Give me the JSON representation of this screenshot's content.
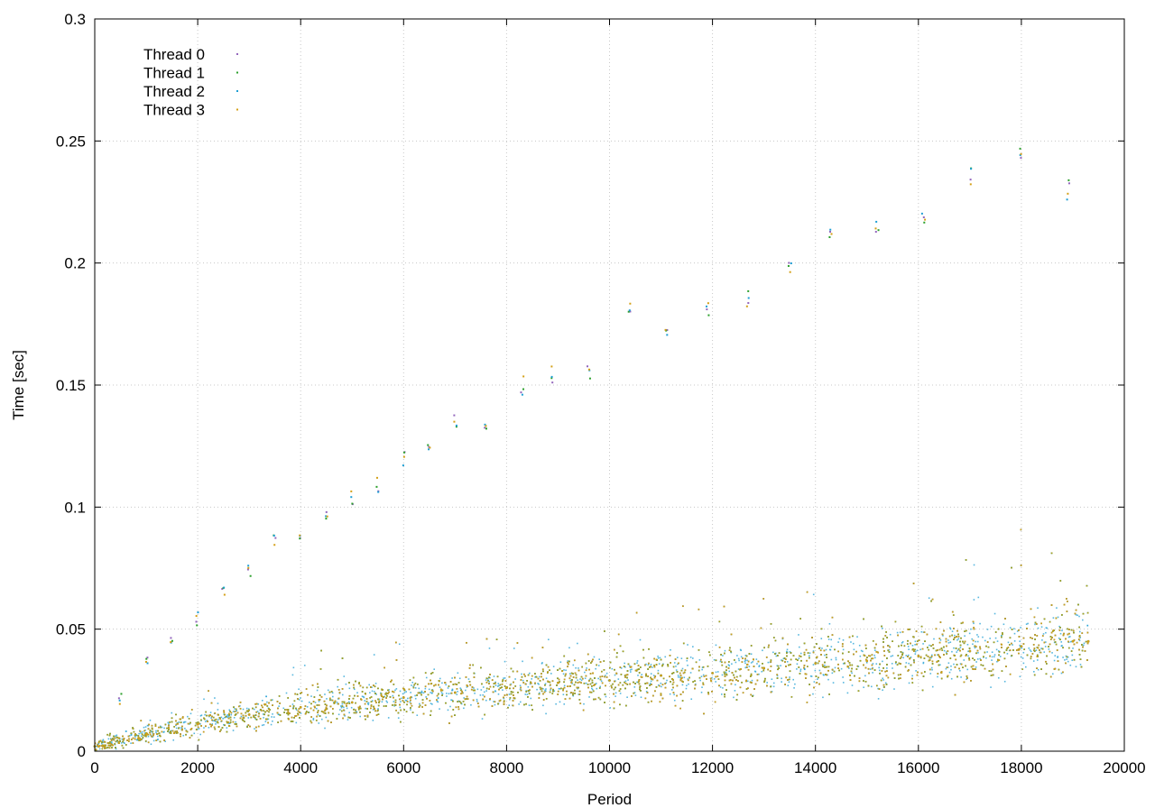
{
  "chart_data": {
    "type": "scatter",
    "title": "",
    "xlabel": "Period",
    "ylabel": "Time [sec]",
    "xlim": [
      0,
      20000
    ],
    "ylim": [
      0,
      0.3
    ],
    "x_ticks": [
      "0",
      "2000",
      "4000",
      "6000",
      "8000",
      "10000",
      "12000",
      "14000",
      "16000",
      "18000",
      "20000"
    ],
    "y_ticks": [
      "0",
      "0.05",
      "0.1",
      "0.15",
      "0.2",
      "0.25",
      "0.3"
    ],
    "grid": true,
    "legend_position": "top-left",
    "series": [
      {
        "name": "Thread 0",
        "color": "#9467bd",
        "x": [
          0,
          1000,
          2000,
          3000,
          4000,
          5000,
          6000,
          7000,
          8000,
          9000,
          10000,
          11000,
          12000,
          13000,
          14000,
          15000,
          16000,
          17000,
          18000,
          19000,
          19300
        ],
        "values": [
          0.002,
          0.007,
          0.011,
          0.015,
          0.018,
          0.02,
          0.022,
          0.024,
          0.026,
          0.028,
          0.029,
          0.031,
          0.032,
          0.034,
          0.036,
          0.037,
          0.039,
          0.041,
          0.043,
          0.045,
          0.045
        ]
      },
      {
        "name": "Thread 1",
        "color": "#2ca02c",
        "x": [
          0,
          1000,
          2000,
          3000,
          4000,
          5000,
          6000,
          7000,
          8000,
          9000,
          10000,
          11000,
          12000,
          13000,
          14000,
          15000,
          16000,
          17000,
          18000,
          19000,
          19300
        ],
        "values": [
          0.002,
          0.007,
          0.011,
          0.015,
          0.018,
          0.02,
          0.022,
          0.024,
          0.026,
          0.028,
          0.029,
          0.031,
          0.032,
          0.034,
          0.036,
          0.037,
          0.039,
          0.041,
          0.043,
          0.045,
          0.045
        ]
      },
      {
        "name": "Thread 2",
        "color": "#1f9fd4",
        "x": [
          0,
          1000,
          2000,
          3000,
          4000,
          5000,
          6000,
          7000,
          8000,
          9000,
          10000,
          11000,
          12000,
          13000,
          14000,
          15000,
          16000,
          17000,
          18000,
          19000,
          19300
        ],
        "values": [
          0.002,
          0.007,
          0.011,
          0.015,
          0.018,
          0.02,
          0.022,
          0.024,
          0.026,
          0.028,
          0.029,
          0.031,
          0.032,
          0.034,
          0.036,
          0.037,
          0.039,
          0.041,
          0.043,
          0.045,
          0.045
        ]
      },
      {
        "name": "Thread 3",
        "color": "#d4a017",
        "x": [
          0,
          1000,
          2000,
          3000,
          4000,
          5000,
          6000,
          7000,
          8000,
          9000,
          10000,
          11000,
          12000,
          13000,
          14000,
          15000,
          16000,
          17000,
          18000,
          19000,
          19300
        ],
        "values": [
          0.002,
          0.007,
          0.011,
          0.015,
          0.018,
          0.02,
          0.022,
          0.024,
          0.026,
          0.028,
          0.029,
          0.031,
          0.032,
          0.034,
          0.036,
          0.037,
          0.039,
          0.041,
          0.043,
          0.045,
          0.045
        ]
      }
    ],
    "outliers": {
      "x": [
        500,
        1000,
        1500,
        2000,
        2500,
        3000,
        3500,
        4000,
        4500,
        5000,
        5500,
        6000,
        6500,
        7000,
        7600,
        8300,
        8900,
        9600,
        10400,
        11100,
        11900,
        12700,
        13500,
        14300,
        15200,
        16100,
        17000,
        18000,
        18900
      ],
      "values": [
        0.02,
        0.035,
        0.045,
        0.055,
        0.065,
        0.075,
        0.085,
        0.09,
        0.095,
        0.105,
        0.11,
        0.12,
        0.125,
        0.135,
        0.135,
        0.15,
        0.155,
        0.155,
        0.18,
        0.17,
        0.18,
        0.185,
        0.2,
        0.21,
        0.215,
        0.22,
        0.235,
        0.245,
        0.23
      ]
    }
  }
}
